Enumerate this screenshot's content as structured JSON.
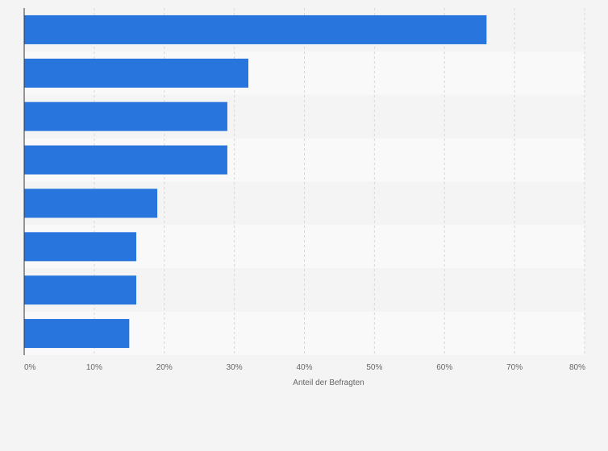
{
  "chart_data": {
    "type": "bar",
    "orientation": "horizontal",
    "categories": [
      "",
      "",
      "",
      "",
      "",
      "",
      "",
      ""
    ],
    "values": [
      66,
      32,
      29,
      29,
      19,
      16,
      16,
      15
    ],
    "xlabel": "Anteil der Befragten",
    "ylabel": "",
    "xlim": [
      0,
      80
    ],
    "x_ticks": [
      0,
      10,
      20,
      30,
      40,
      50,
      60,
      70,
      80
    ],
    "x_tick_labels": [
      "0%",
      "10%",
      "20%",
      "30%",
      "40%",
      "50%",
      "60%",
      "70%",
      "80%"
    ],
    "grid": true,
    "legend": "none",
    "bar_color": "#2876dd",
    "band_colors": [
      "#f4f4f4",
      "#f9f9f9"
    ],
    "grid_color": "#d8d8d8",
    "axis_color": "#333333"
  }
}
